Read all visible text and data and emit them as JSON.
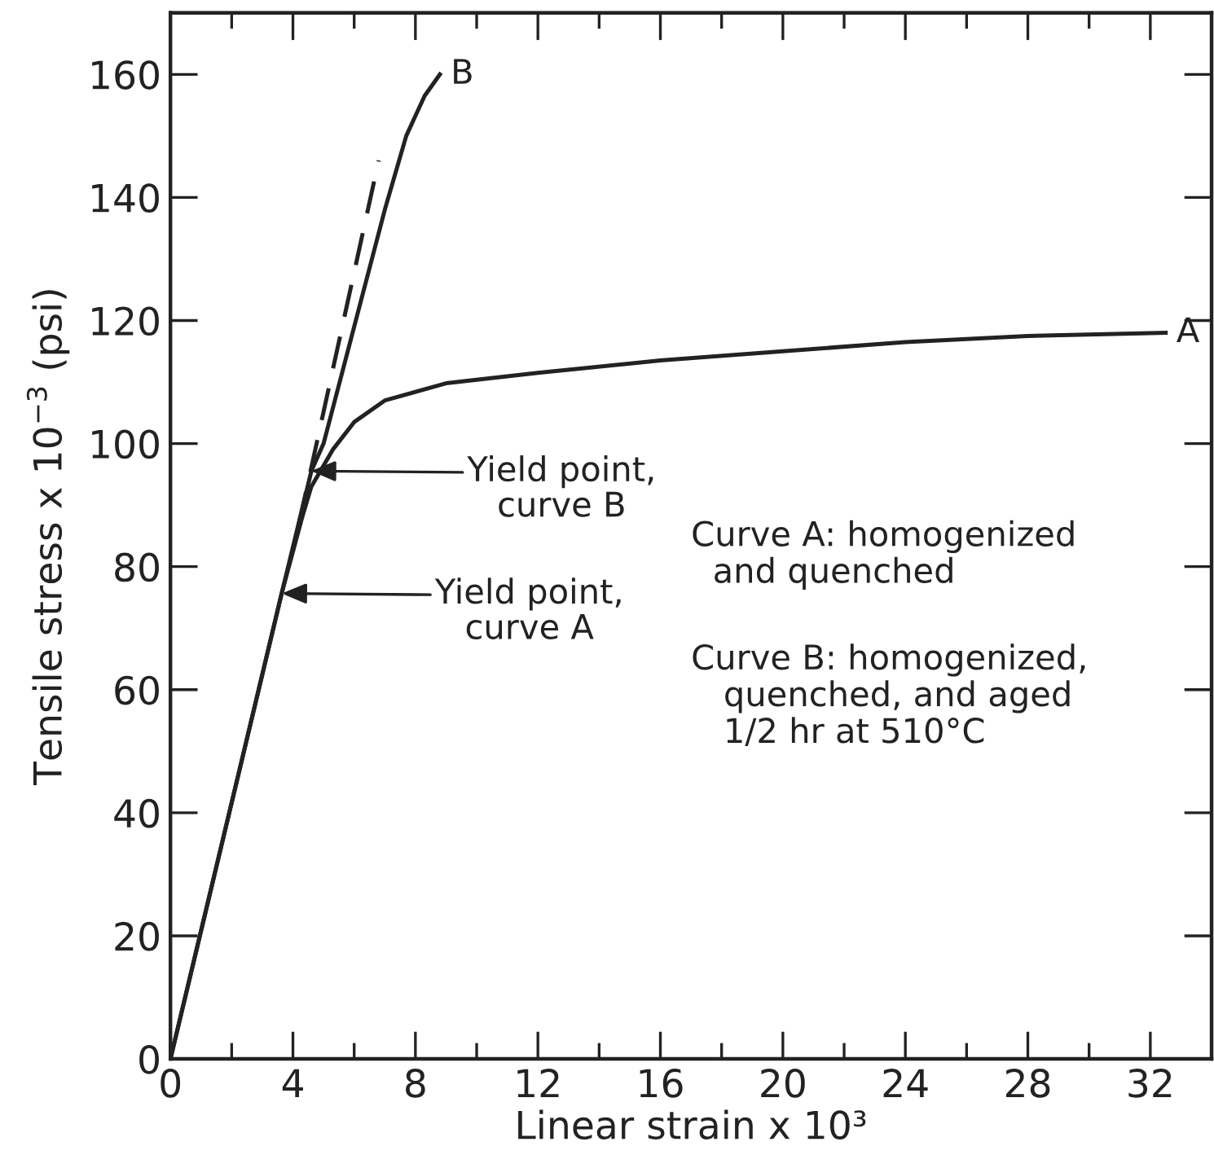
{
  "chart_data": {
    "type": "line",
    "xlabel": "Linear strain x 10³",
    "ylabel": "Tensile stress x 10$^{−3}$ (psi)",
    "xlim": [
      0,
      34
    ],
    "ylim": [
      0,
      170
    ],
    "xticks": [
      0,
      {
        "value": 2,
        "label": null
      },
      4,
      {
        "value": 6,
        "label": null
      },
      8,
      {
        "value": 10,
        "label": null
      },
      12,
      {
        "value": 14,
        "label": null
      },
      16,
      {
        "value": 18,
        "label": null
      },
      20,
      {
        "value": 22,
        "label": null
      },
      24,
      {
        "value": 26,
        "label": null
      },
      28,
      {
        "value": 30,
        "label": null
      },
      32
    ],
    "yticks": [
      0,
      20,
      40,
      60,
      80,
      100,
      120,
      140,
      160
    ],
    "grid": false,
    "legend": false,
    "marker": "none",
    "series": [
      {
        "color": "#222222",
        "line_style": "solid",
        "x": [
          0,
          3.63,
          4.3,
          4.6,
          5.3,
          6,
          7,
          9,
          12,
          16,
          20,
          24,
          28,
          32.5
        ],
        "values": [
          0,
          75.6,
          88,
          93,
          99,
          103.5,
          107,
          109.8,
          111.5,
          113.5,
          115,
          116.5,
          117.5,
          118
        ]
      },
      {
        "color": "#222222",
        "line_style": "solid",
        "x": [
          0,
          3.63,
          4.6,
          5.0,
          6.0,
          7.0,
          7.7,
          8.3,
          8.8
        ],
        "values": [
          0,
          75.6,
          95.5,
          100,
          119,
          138,
          150,
          156.5,
          160
        ]
      },
      {
        "color": "#222222",
        "line_style": "dashed",
        "x": [
          4.2,
          6.8
        ],
        "values": [
          87,
          146
        ]
      }
    ],
    "annotations": [
      "Yield point,\ncurve B",
      "Yield point,\ncurve A",
      {
        "text": "A",
        "x": 32.5,
        "y": 118
      },
      {
        "text": "B",
        "x": 8.8,
        "y": 160
      },
      "Curve A: homogenized\n  and quenched",
      "Curve B: homogenized,\n   quenched, and aged\n   1/2 hr at 510°C"
    ]
  }
}
